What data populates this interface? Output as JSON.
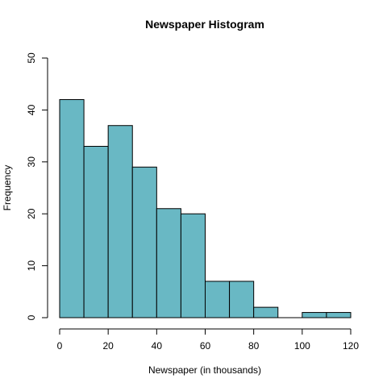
{
  "chart_data": {
    "type": "bar",
    "title": "Newspaper Histogram",
    "xlabel": "Newspaper (in thousands)",
    "ylabel": "Frequency",
    "bins": [
      [
        0,
        10
      ],
      [
        10,
        20
      ],
      [
        20,
        30
      ],
      [
        30,
        40
      ],
      [
        40,
        50
      ],
      [
        50,
        60
      ],
      [
        60,
        70
      ],
      [
        70,
        80
      ],
      [
        80,
        90
      ],
      [
        90,
        100
      ],
      [
        100,
        110
      ],
      [
        110,
        120
      ]
    ],
    "values": [
      42,
      33,
      37,
      29,
      21,
      20,
      7,
      7,
      2,
      0,
      1,
      1
    ],
    "xlim": [
      0,
      120
    ],
    "ylim": [
      0,
      50
    ],
    "x_ticks": [
      0,
      20,
      40,
      60,
      80,
      100,
      120
    ],
    "y_ticks": [
      0,
      10,
      20,
      30,
      40,
      50
    ],
    "bar_color": "#69b8c4",
    "bar_edge_color": "#000000",
    "grid": false,
    "legend": "none"
  }
}
